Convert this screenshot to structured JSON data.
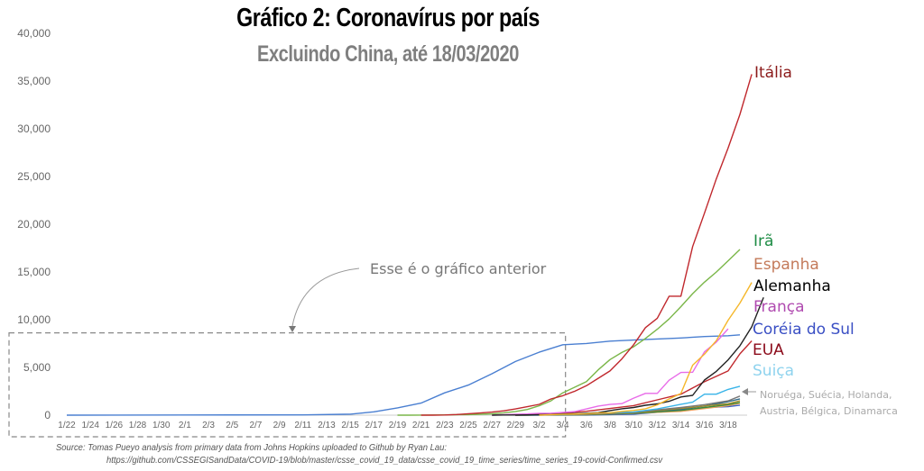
{
  "chart_data": {
    "type": "line",
    "title": "Gráfico 2: Coronavírus por país",
    "subtitle": "Excluindo China, até 18/03/2020",
    "xlabel": "",
    "ylabel": "",
    "ylim": [
      0,
      40000
    ],
    "grid": false,
    "y_ticks": [
      "0",
      "5,000",
      "10,000",
      "15,000",
      "20,000",
      "25,000",
      "30,000",
      "35,000",
      "40,000"
    ],
    "y_tick_values": [
      0,
      5000,
      10000,
      15000,
      20000,
      25000,
      30000,
      35000,
      40000
    ],
    "x_tick_labels": [
      "1/22",
      "1/24",
      "1/26",
      "1/28",
      "1/30",
      "2/1",
      "2/3",
      "2/5",
      "2/7",
      "2/9",
      "2/11",
      "2/13",
      "2/15",
      "2/17",
      "2/19",
      "2/21",
      "2/23",
      "2/25",
      "2/27",
      "2/29",
      "3/2",
      "3/4",
      "3/6",
      "3/8",
      "3/10",
      "3/12",
      "3/14",
      "3/16",
      "3/18"
    ],
    "x_start": "1/22",
    "x_end": "3/18",
    "x_day_count": 57,
    "series": [
      {
        "name": "Itália",
        "label": "Itália",
        "color": "#c0282d",
        "label_color": "#8b1a1a",
        "points": [
          [
            30,
            0
          ],
          [
            31,
            3
          ],
          [
            32,
            20
          ],
          [
            33,
            62
          ],
          [
            34,
            155
          ],
          [
            35,
            229
          ],
          [
            36,
            322
          ],
          [
            37,
            453
          ],
          [
            38,
            655
          ],
          [
            39,
            888
          ],
          [
            40,
            1128
          ],
          [
            41,
            1694
          ],
          [
            42,
            2036
          ],
          [
            43,
            2502
          ],
          [
            44,
            3089
          ],
          [
            45,
            3858
          ],
          [
            46,
            4636
          ],
          [
            47,
            5883
          ],
          [
            48,
            7375
          ],
          [
            49,
            9172
          ],
          [
            50,
            10149
          ],
          [
            51,
            12462
          ],
          [
            52,
            12462
          ],
          [
            53,
            17660
          ],
          [
            54,
            21157
          ],
          [
            55,
            24747
          ],
          [
            56,
            27980
          ],
          [
            57,
            31506
          ],
          [
            58,
            35713
          ]
        ]
      },
      {
        "name": "Irã",
        "label": "Irã",
        "color": "#7ab648",
        "label_color": "#1e8c45",
        "points": [
          [
            28,
            0
          ],
          [
            29,
            2
          ],
          [
            30,
            5
          ],
          [
            31,
            18
          ],
          [
            32,
            28
          ],
          [
            33,
            43
          ],
          [
            34,
            61
          ],
          [
            35,
            95
          ],
          [
            36,
            139
          ],
          [
            37,
            245
          ],
          [
            38,
            388
          ],
          [
            39,
            593
          ],
          [
            40,
            978
          ],
          [
            41,
            1501
          ],
          [
            42,
            2336
          ],
          [
            43,
            2922
          ],
          [
            44,
            3513
          ],
          [
            45,
            4747
          ],
          [
            46,
            5823
          ],
          [
            47,
            6566
          ],
          [
            48,
            7161
          ],
          [
            49,
            8042
          ],
          [
            50,
            9000
          ],
          [
            51,
            10075
          ],
          [
            52,
            11364
          ],
          [
            53,
            12729
          ],
          [
            54,
            13938
          ],
          [
            55,
            14991
          ],
          [
            56,
            16169
          ],
          [
            57,
            17361
          ]
        ]
      },
      {
        "name": "Espanha",
        "label": "Espanha",
        "color": "#f5b72a",
        "label_color": "#c47a5a",
        "points": [
          [
            40,
            0
          ],
          [
            41,
            45
          ],
          [
            42,
            84
          ],
          [
            43,
            120
          ],
          [
            44,
            165
          ],
          [
            45,
            222
          ],
          [
            46,
            259
          ],
          [
            47,
            400
          ],
          [
            48,
            500
          ],
          [
            49,
            673
          ],
          [
            50,
            1073
          ],
          [
            51,
            1695
          ],
          [
            52,
            2277
          ],
          [
            53,
            5232
          ],
          [
            54,
            6391
          ],
          [
            55,
            7798
          ],
          [
            56,
            9942
          ],
          [
            57,
            11748
          ],
          [
            58,
            13910
          ]
        ]
      },
      {
        "name": "Alemanha",
        "label": "Alemanha",
        "color": "#222222",
        "label_color": "#000000",
        "points": [
          [
            36,
            0
          ],
          [
            37,
            16
          ],
          [
            38,
            18
          ],
          [
            39,
            26
          ],
          [
            40,
            48
          ],
          [
            41,
            79
          ],
          [
            42,
            130
          ],
          [
            43,
            159
          ],
          [
            44,
            196
          ],
          [
            45,
            262
          ],
          [
            46,
            482
          ],
          [
            47,
            670
          ],
          [
            48,
            799
          ],
          [
            49,
            1040
          ],
          [
            50,
            1176
          ],
          [
            51,
            1457
          ],
          [
            52,
            1908
          ],
          [
            53,
            2078
          ],
          [
            54,
            3675
          ],
          [
            55,
            4585
          ],
          [
            56,
            5795
          ],
          [
            57,
            7272
          ],
          [
            58,
            9257
          ],
          [
            59,
            12327
          ]
        ]
      },
      {
        "name": "França",
        "label": "França",
        "color": "#e86be8",
        "label_color": "#b04ab0",
        "points": [
          [
            36,
            0
          ],
          [
            37,
            57
          ],
          [
            38,
            100
          ],
          [
            39,
            130
          ],
          [
            40,
            191
          ],
          [
            41,
            204
          ],
          [
            42,
            285
          ],
          [
            43,
            377
          ],
          [
            44,
            653
          ],
          [
            45,
            949
          ],
          [
            46,
            1126
          ],
          [
            47,
            1209
          ],
          [
            48,
            1784
          ],
          [
            49,
            2281
          ],
          [
            50,
            2281
          ],
          [
            51,
            3661
          ],
          [
            52,
            4469
          ],
          [
            53,
            4499
          ],
          [
            54,
            6633
          ],
          [
            55,
            7652
          ],
          [
            56,
            9043
          ]
        ]
      },
      {
        "name": "Coréia do Sul",
        "label": "Coréia do Sul",
        "color": "#4a7fd1",
        "label_color": "#3a4fc4",
        "points": [
          [
            0,
            1
          ],
          [
            10,
            15
          ],
          [
            20,
            28
          ],
          [
            24,
            104
          ],
          [
            26,
            346
          ],
          [
            28,
            763
          ],
          [
            30,
            1261
          ],
          [
            32,
            2337
          ],
          [
            34,
            3150
          ],
          [
            36,
            4335
          ],
          [
            38,
            5621
          ],
          [
            40,
            6593
          ],
          [
            42,
            7382
          ],
          [
            44,
            7513
          ],
          [
            46,
            7755
          ],
          [
            48,
            7869
          ],
          [
            50,
            7979
          ],
          [
            52,
            8086
          ],
          [
            54,
            8236
          ],
          [
            56,
            8320
          ],
          [
            57,
            8413
          ]
        ]
      },
      {
        "name": "EUA",
        "label": "EUA",
        "color": "#c0282d",
        "label_color": "#8b0a1a",
        "points": [
          [
            38,
            0
          ],
          [
            40,
            100
          ],
          [
            42,
            217
          ],
          [
            44,
            402
          ],
          [
            46,
            700
          ],
          [
            48,
            1000
          ],
          [
            50,
            1600
          ],
          [
            52,
            2200
          ],
          [
            54,
            3500
          ],
          [
            56,
            4632
          ],
          [
            57,
            6421
          ],
          [
            58,
            7786
          ]
        ]
      },
      {
        "name": "Suiça",
        "label": "Suiça",
        "color": "#39b4e8",
        "label_color": "#8fd3ee",
        "points": [
          [
            38,
            0
          ],
          [
            40,
            50
          ],
          [
            42,
            90
          ],
          [
            44,
            214
          ],
          [
            46,
            268
          ],
          [
            48,
            337
          ],
          [
            50,
            652
          ],
          [
            52,
            1139
          ],
          [
            53,
            1359
          ],
          [
            54,
            2200
          ],
          [
            55,
            2200
          ],
          [
            56,
            2700
          ],
          [
            57,
            3028
          ]
        ]
      },
      {
        "name": "Noruega",
        "label": "",
        "color": "#777777",
        "label_color": "#aaaaaa",
        "points": [
          [
            38,
            0
          ],
          [
            44,
            100
          ],
          [
            48,
            300
          ],
          [
            52,
            800
          ],
          [
            54,
            1100
          ],
          [
            56,
            1500
          ],
          [
            57,
            2000
          ]
        ]
      },
      {
        "name": "Suécia",
        "label": "",
        "color": "#a08b2a",
        "label_color": "#aaaaaa",
        "points": [
          [
            38,
            0
          ],
          [
            44,
            80
          ],
          [
            48,
            250
          ],
          [
            52,
            700
          ],
          [
            54,
            961
          ],
          [
            56,
            1200
          ],
          [
            57,
            1500
          ]
        ]
      },
      {
        "name": "Holanda",
        "label": "",
        "color": "#2f6b8a",
        "label_color": "#aaaaaa",
        "points": [
          [
            38,
            0
          ],
          [
            44,
            80
          ],
          [
            48,
            300
          ],
          [
            52,
            600
          ],
          [
            54,
            959
          ],
          [
            56,
            1413
          ],
          [
            57,
            1705
          ]
        ]
      },
      {
        "name": "Austria",
        "label": "",
        "color": "#3a8a3a",
        "label_color": "#aaaaaa",
        "points": [
          [
            38,
            0
          ],
          [
            44,
            50
          ],
          [
            48,
            200
          ],
          [
            52,
            500
          ],
          [
            54,
            800
          ],
          [
            56,
            1100
          ],
          [
            57,
            1332
          ]
        ]
      },
      {
        "name": "Bélgica",
        "label": "",
        "color": "#f0a060",
        "label_color": "#aaaaaa",
        "points": [
          [
            38,
            0
          ],
          [
            44,
            50
          ],
          [
            48,
            200
          ],
          [
            52,
            400
          ],
          [
            54,
            689
          ],
          [
            56,
            1000
          ],
          [
            57,
            1243
          ]
        ]
      },
      {
        "name": "Dinamarca",
        "label": "",
        "color": "#3a5fc4",
        "label_color": "#aaaaaa",
        "points": [
          [
            38,
            0
          ],
          [
            44,
            10
          ],
          [
            48,
            100
          ],
          [
            52,
            500
          ],
          [
            54,
            800
          ],
          [
            56,
            900
          ],
          [
            57,
            1044
          ]
        ]
      }
    ],
    "group_note": {
      "line1": "Noruéga, Suécia, Holanda,",
      "line2": "Austria, Bélgica, Dinamarca"
    },
    "annotation": {
      "text": "Esse é o gráfico anterior",
      "box_x_range": [
        "1/22",
        "3/4"
      ],
      "box_y_max": 9000
    }
  },
  "source": {
    "line1": "Source: Tomas Pueyo analysis from primary data from Johns Hopkins uploaded to Github by Ryan Lau:",
    "line2": "https://github.com/CSSEGISandData/COVID-19/blob/master/csse_covid_19_data/csse_covid_19_time_series/time_series_19-covid-Confirmed.csv"
  }
}
